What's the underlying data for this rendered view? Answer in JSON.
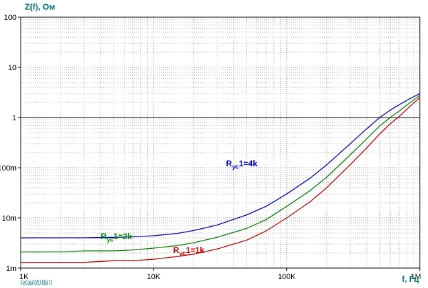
{
  "chart_data": {
    "type": "line",
    "title": "",
    "ylabel": "Z(f), Ом",
    "xlabel": "f, Гц",
    "footer": "(v(out)/I(Ro))",
    "x_scale": "log",
    "y_scale": "log",
    "xlim": [
      1000,
      1000000
    ],
    "ylim": [
      0.001,
      100
    ],
    "grid": true,
    "legend_position": "inline-annotations",
    "reference_line_y": 1,
    "axis_label_color": "#007070",
    "x_ticks": [
      {
        "v": 1000,
        "label": "1K"
      },
      {
        "v": 10000,
        "label": "10K"
      },
      {
        "v": 100000,
        "label": "100K"
      },
      {
        "v": 1000000,
        "label": "1M"
      }
    ],
    "y_ticks": [
      {
        "v": 100,
        "label": "100"
      },
      {
        "v": 10,
        "label": "10"
      },
      {
        "v": 1,
        "label": "1"
      },
      {
        "v": 0.1,
        "label": "100m"
      },
      {
        "v": 0.01,
        "label": "10m"
      },
      {
        "v": 0.001,
        "label": "1m"
      }
    ],
    "x": [
      1000,
      1500,
      2000,
      3000,
      5000,
      7000,
      10000,
      15000,
      20000,
      30000,
      50000,
      70000,
      100000,
      150000,
      200000,
      300000,
      400000,
      500000,
      600000,
      700000,
      850000,
      1000000
    ],
    "series": [
      {
        "id": "ryc1-4k",
        "name": "Rус1=4k",
        "color": "#0000c0",
        "values": [
          0.004,
          0.004,
          0.004,
          0.004,
          0.0041,
          0.0042,
          0.0044,
          0.0049,
          0.0056,
          0.0072,
          0.0115,
          0.017,
          0.03,
          0.062,
          0.115,
          0.3,
          0.6,
          1.0,
          1.4,
          1.8,
          2.4,
          3.0
        ]
      },
      {
        "id": "ryc1-2k",
        "name": "Rус1=2k",
        "color": "#007f00",
        "values": [
          0.0021,
          0.0021,
          0.0021,
          0.0022,
          0.0022,
          0.0023,
          0.0025,
          0.0028,
          0.0032,
          0.0041,
          0.0062,
          0.0092,
          0.017,
          0.035,
          0.065,
          0.18,
          0.38,
          0.68,
          1.0,
          1.35,
          2.0,
          2.75
        ]
      },
      {
        "id": "ryc1-1k",
        "name": "Rус1=1k",
        "color": "#c00000",
        "values": [
          0.0013,
          0.0013,
          0.0013,
          0.0013,
          0.0014,
          0.0014,
          0.0015,
          0.0017,
          0.0019,
          0.0024,
          0.0036,
          0.0055,
          0.01,
          0.021,
          0.04,
          0.115,
          0.25,
          0.47,
          0.75,
          1.05,
          1.7,
          2.5
        ]
      }
    ],
    "annotations": [
      {
        "base": "R",
        "sub": "ус",
        "rest": "1=4k",
        "label": "Rус1=4k",
        "color": "#0000c0",
        "f": 35000,
        "z": 0.1
      },
      {
        "base": "R",
        "sub": "ус",
        "rest": "1=2k",
        "label": "Rус1=2k",
        "color": "#007f00",
        "f": 4000,
        "z": 0.0035
      },
      {
        "base": "R",
        "sub": "ус",
        "rest": "1=1k",
        "label": "Rус1=1k",
        "color": "#c00000",
        "f": 14000,
        "z": 0.0019
      }
    ]
  }
}
